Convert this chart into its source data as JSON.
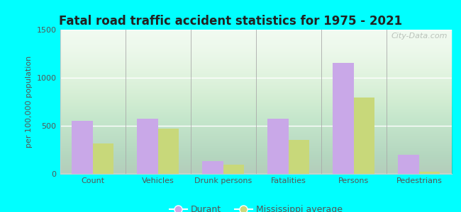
{
  "title": "Fatal road traffic accident statistics for 1975 - 2021",
  "ylabel": "per 100,000 population",
  "categories": [
    "Count",
    "Vehicles",
    "Drunk persons",
    "Fatalities",
    "Persons",
    "Pedestrians"
  ],
  "durant_values": [
    555,
    575,
    130,
    575,
    1155,
    195
  ],
  "ms_avg_values": [
    315,
    470,
    92,
    355,
    795,
    22
  ],
  "durant_color": "#c9a8e8",
  "ms_avg_color": "#c8d87a",
  "durant_label": "Durant",
  "ms_avg_label": "Mississippi average",
  "ylim": [
    0,
    1500
  ],
  "yticks": [
    0,
    500,
    1000,
    1500
  ],
  "plot_bg_top": "#d4ecd4",
  "plot_bg_bottom": "#f0faf0",
  "outer_background": "#00ffff",
  "title_color": "#222222",
  "axis_color": "#555555",
  "tick_color": "#555555",
  "bar_width": 0.32,
  "watermark": "City-Data.com"
}
